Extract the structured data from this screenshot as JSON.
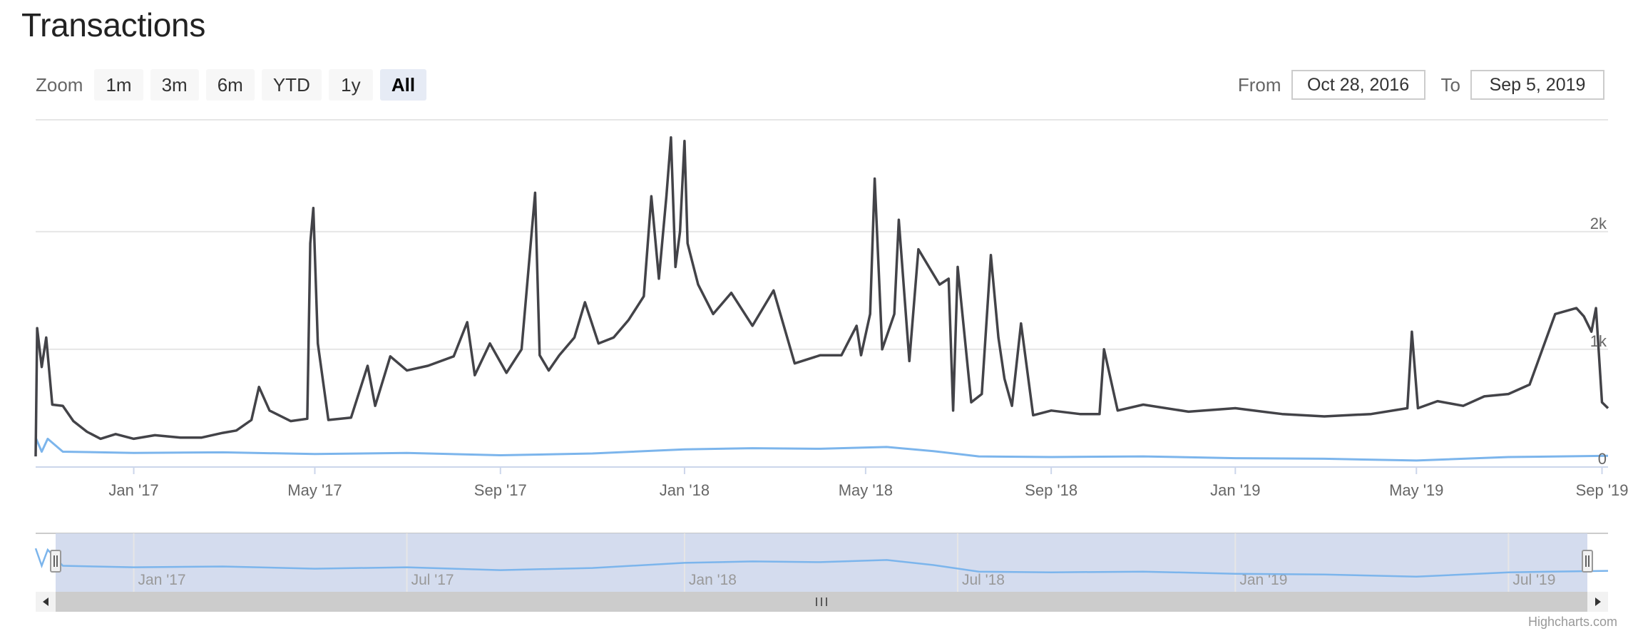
{
  "page": {
    "title": "Transactions",
    "credits": "Highcharts.com"
  },
  "zoom": {
    "label": "Zoom",
    "buttons": [
      "1m",
      "3m",
      "6m",
      "YTD",
      "1y",
      "All"
    ],
    "active": "All"
  },
  "range": {
    "from_label": "From",
    "from_value": "Oct 28, 2016",
    "to_label": "To",
    "to_value": "Sep 5, 2019"
  },
  "navigator": {
    "tick_labels": [
      "Jan '17",
      "Jul '17",
      "Jan '18",
      "Jul '18",
      "Jan '19",
      "Jul '19"
    ]
  },
  "colors": {
    "series_main": "#434348",
    "series_secondary": "#7cb5ec",
    "navigator_mask": "#ccd6eb",
    "grid": "#e6e6e6",
    "scrollbar": "#cccccc"
  },
  "chart_data": {
    "type": "line",
    "title": "Transactions",
    "x_start": "2016-10-28",
    "x_end": "2019-09-05",
    "xticks": [
      "Jan '17",
      "May '17",
      "Sep '17",
      "Jan '18",
      "May '18",
      "Sep '18",
      "Jan '19",
      "May '19",
      "Sep '19"
    ],
    "xtick_dates": [
      "2017-01-01",
      "2017-05-01",
      "2017-09-01",
      "2018-01-01",
      "2018-05-01",
      "2018-09-01",
      "2019-01-01",
      "2019-05-01",
      "2019-09-01"
    ],
    "yticks": [
      "0",
      "1k",
      "2k"
    ],
    "ylim": [
      0,
      2000
    ],
    "grid": true,
    "series": [
      {
        "color": "#434348",
        "x": [
          "2016-10-28",
          "2016-10-29",
          "2016-11-01",
          "2016-11-04",
          "2016-11-08",
          "2016-11-15",
          "2016-11-22",
          "2016-12-01",
          "2016-12-10",
          "2016-12-20",
          "2017-01-01",
          "2017-01-15",
          "2017-02-01",
          "2017-02-15",
          "2017-03-01",
          "2017-03-10",
          "2017-03-20",
          "2017-03-25",
          "2017-04-01",
          "2017-04-15",
          "2017-04-26",
          "2017-04-28",
          "2017-04-30",
          "2017-05-03",
          "2017-05-10",
          "2017-05-25",
          "2017-06-05",
          "2017-06-10",
          "2017-06-20",
          "2017-07-01",
          "2017-07-15",
          "2017-08-01",
          "2017-08-10",
          "2017-08-15",
          "2017-08-25",
          "2017-09-05",
          "2017-09-15",
          "2017-09-24",
          "2017-09-27",
          "2017-10-03",
          "2017-10-10",
          "2017-10-20",
          "2017-10-27",
          "2017-11-05",
          "2017-11-15",
          "2017-11-25",
          "2017-12-05",
          "2017-12-10",
          "2017-12-15",
          "2017-12-20",
          "2017-12-23",
          "2017-12-26",
          "2017-12-29",
          "2018-01-01",
          "2018-01-03",
          "2018-01-06",
          "2018-01-10",
          "2018-01-20",
          "2018-02-01",
          "2018-02-15",
          "2018-03-01",
          "2018-03-15",
          "2018-04-01",
          "2018-04-15",
          "2018-04-25",
          "2018-04-28",
          "2018-05-04",
          "2018-05-07",
          "2018-05-12",
          "2018-05-20",
          "2018-05-23",
          "2018-05-30",
          "2018-06-05",
          "2018-06-12",
          "2018-06-19",
          "2018-06-25",
          "2018-06-28",
          "2018-07-01",
          "2018-07-10",
          "2018-07-17",
          "2018-07-23",
          "2018-07-28",
          "2018-08-01",
          "2018-08-06",
          "2018-08-12",
          "2018-08-20",
          "2018-09-01",
          "2018-09-20",
          "2018-10-03",
          "2018-10-06",
          "2018-10-15",
          "2018-11-01",
          "2018-12-01",
          "2019-01-01",
          "2019-02-01",
          "2019-03-01",
          "2019-04-01",
          "2019-04-25",
          "2019-04-28",
          "2019-05-02",
          "2019-05-15",
          "2019-06-01",
          "2019-06-15",
          "2019-07-01",
          "2019-07-15",
          "2019-08-01",
          "2019-08-15",
          "2019-08-20",
          "2019-08-25",
          "2019-08-28",
          "2019-09-01",
          "2019-09-05"
        ],
        "y": [
          90,
          1180,
          850,
          1100,
          530,
          520,
          390,
          300,
          240,
          280,
          240,
          270,
          250,
          250,
          290,
          310,
          400,
          680,
          480,
          390,
          410,
          1900,
          2200,
          1050,
          400,
          420,
          860,
          520,
          940,
          820,
          860,
          940,
          1230,
          780,
          1050,
          800,
          1000,
          2330,
          950,
          820,
          950,
          1100,
          1400,
          1050,
          1100,
          1250,
          1450,
          2300,
          1600,
          2300,
          2800,
          1700,
          2000,
          2770,
          1900,
          1750,
          1550,
          1300,
          1480,
          1200,
          1500,
          880,
          950,
          950,
          1200,
          950,
          1300,
          2450,
          1000,
          1300,
          2100,
          900,
          1850,
          1700,
          1550,
          1600,
          480,
          1700,
          550,
          620,
          1800,
          1100,
          750,
          520,
          1220,
          440,
          480,
          450,
          450,
          1000,
          480,
          530,
          470,
          500,
          450,
          430,
          450,
          500,
          1150,
          500,
          560,
          520,
          600,
          620,
          700,
          1300,
          1350,
          1280,
          1150,
          1350,
          550,
          500
        ]
      },
      {
        "color": "#7cb5ec",
        "x": [
          "2016-10-28",
          "2016-11-01",
          "2016-11-05",
          "2016-11-15",
          "2017-01-01",
          "2017-03-01",
          "2017-05-01",
          "2017-07-01",
          "2017-09-01",
          "2017-11-01",
          "2018-01-01",
          "2018-02-15",
          "2018-04-01",
          "2018-05-15",
          "2018-06-15",
          "2018-07-15",
          "2018-09-01",
          "2018-11-01",
          "2019-01-01",
          "2019-03-01",
          "2019-05-01",
          "2019-07-01",
          "2019-09-05"
        ],
        "y": [
          250,
          130,
          240,
          130,
          120,
          125,
          110,
          120,
          100,
          115,
          150,
          160,
          155,
          170,
          135,
          90,
          85,
          90,
          75,
          70,
          55,
          85,
          95
        ]
      }
    ]
  }
}
